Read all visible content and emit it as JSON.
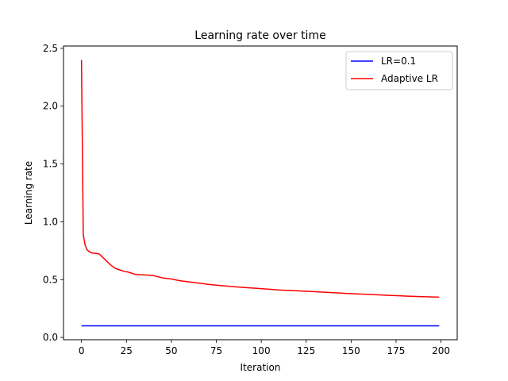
{
  "chart_data": {
    "type": "line",
    "title": "Learning rate over time",
    "xlabel": "Iteration",
    "ylabel": "Learning rate",
    "xlim": [
      -10,
      209
    ],
    "ylim": [
      -0.02,
      2.52
    ],
    "xticks": [
      0,
      25,
      50,
      75,
      100,
      125,
      150,
      175,
      200
    ],
    "xtick_labels": [
      "0",
      "25",
      "50",
      "75",
      "100",
      "125",
      "150",
      "175",
      "200"
    ],
    "yticks": [
      0.0,
      0.5,
      1.0,
      1.5,
      2.0,
      2.5
    ],
    "ytick_labels": [
      "0.0",
      "0.5",
      "1.0",
      "1.5",
      "2.0",
      "2.5"
    ],
    "grid": false,
    "legend_position": "top-right",
    "series": [
      {
        "name": "LR=0.1",
        "color": "#0000ff",
        "x": [
          0,
          199
        ],
        "y": [
          0.1,
          0.1
        ]
      },
      {
        "name": "Adaptive LR",
        "color": "#ff0000",
        "x": [
          0,
          1,
          2,
          3,
          4,
          5,
          6,
          7,
          8,
          9,
          10,
          12,
          14,
          16,
          18,
          20,
          22,
          24,
          26,
          28,
          30,
          35,
          40,
          45,
          50,
          55,
          60,
          65,
          70,
          75,
          80,
          85,
          90,
          95,
          100,
          110,
          120,
          130,
          140,
          150,
          160,
          170,
          180,
          190,
          199
        ],
        "y": [
          2.4,
          0.89,
          0.8,
          0.76,
          0.745,
          0.735,
          0.73,
          0.728,
          0.727,
          0.725,
          0.72,
          0.69,
          0.66,
          0.63,
          0.605,
          0.59,
          0.58,
          0.57,
          0.565,
          0.555,
          0.545,
          0.54,
          0.535,
          0.515,
          0.505,
          0.49,
          0.48,
          0.47,
          0.46,
          0.452,
          0.445,
          0.438,
          0.432,
          0.427,
          0.422,
          0.41,
          0.403,
          0.395,
          0.387,
          0.378,
          0.372,
          0.364,
          0.358,
          0.352,
          0.348
        ]
      }
    ]
  }
}
